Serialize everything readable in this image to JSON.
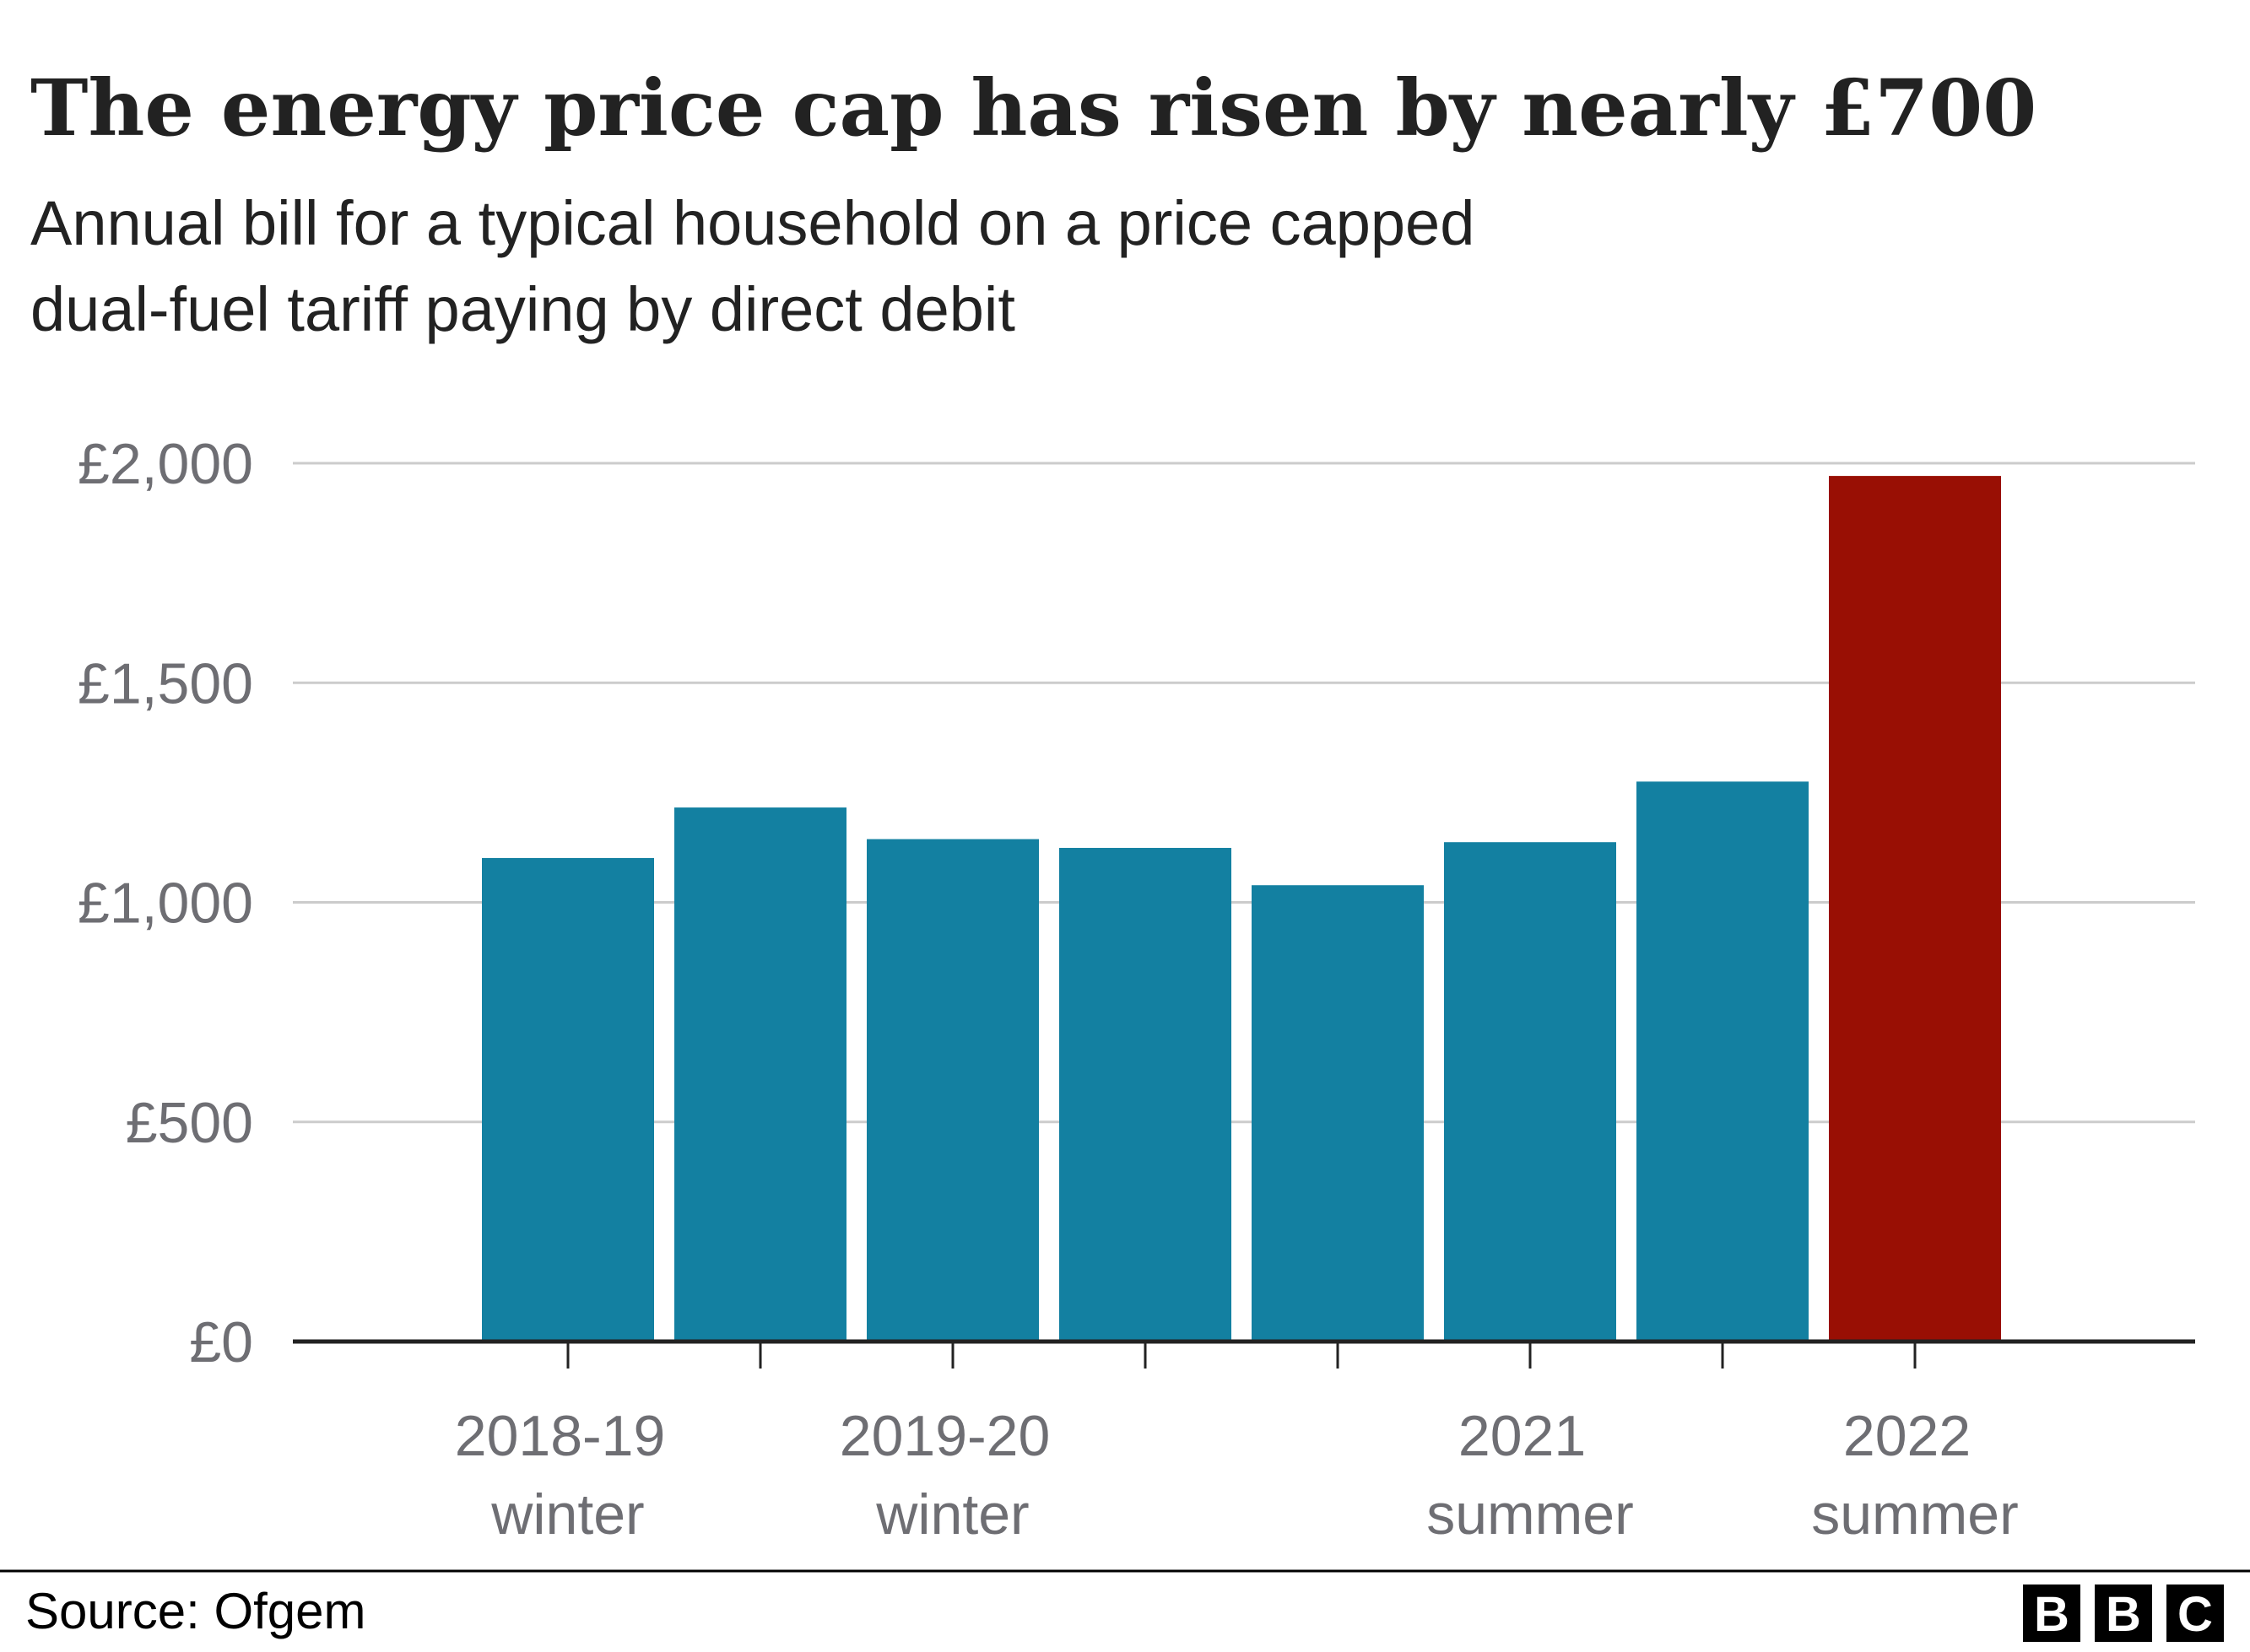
{
  "chart_data": {
    "type": "bar",
    "title": "The energy price cap has risen by nearly £700",
    "subtitle": [
      "Annual bill for a typical household on a price capped",
      "dual-fuel tariff paying by direct debit"
    ],
    "categories": [
      "2018-19 winter",
      null,
      "2019-20 winter",
      null,
      null,
      "2021 summer",
      null,
      "2022 summer"
    ],
    "values": [
      1101,
      1216,
      1144,
      1124,
      1039,
      1137,
      1275,
      1971
    ],
    "colors": [
      "#1380a1",
      "#1380a1",
      "#1380a1",
      "#1380a1",
      "#1380a1",
      "#1380a1",
      "#1380a1",
      "#990f04"
    ],
    "ylim": [
      0,
      2000
    ],
    "yticks": [
      {
        "value": 0,
        "label": "£0"
      },
      {
        "value": 500,
        "label": "£500"
      },
      {
        "value": 1000,
        "label": "£1,000"
      },
      {
        "value": 1500,
        "label": "£1,500"
      },
      {
        "value": 2000,
        "label": "£2,000"
      }
    ],
    "grid": true,
    "source": "Source: Ofgem",
    "logo": "BBC"
  }
}
